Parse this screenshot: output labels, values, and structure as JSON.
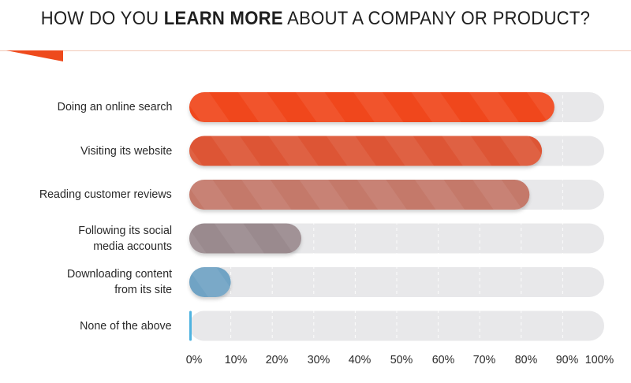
{
  "title": {
    "part1": "HOW DO YOU ",
    "bold": "LEARN MORE",
    "part2": " ABOUT A COMPANY OR PRODUCT?"
  },
  "chart_data": {
    "type": "bar",
    "orientation": "horizontal",
    "title": "HOW DO YOU LEARN MORE ABOUT A COMPANY OR PRODUCT?",
    "categories": [
      "Doing an online search",
      "Visiting its website",
      "Reading customer reviews",
      "Following its social\nmedia accounts",
      "Downloading content\nfrom its site",
      "None of the above"
    ],
    "values": [
      88,
      85,
      82,
      27,
      10,
      0.5
    ],
    "colors": [
      "#f0461c",
      "#dd5535",
      "#c4796a",
      "#9a8a8e",
      "#6fa3c4",
      "#4fb3e0"
    ],
    "track_color": "#e8e8ea",
    "xlim": [
      0,
      100
    ],
    "xticks": [
      "0%",
      "10%",
      "20%",
      "30%",
      "40%",
      "50%",
      "60%",
      "70%",
      "80%",
      "90%",
      "100%"
    ],
    "grid": "dashed vertical",
    "legend": "none"
  }
}
